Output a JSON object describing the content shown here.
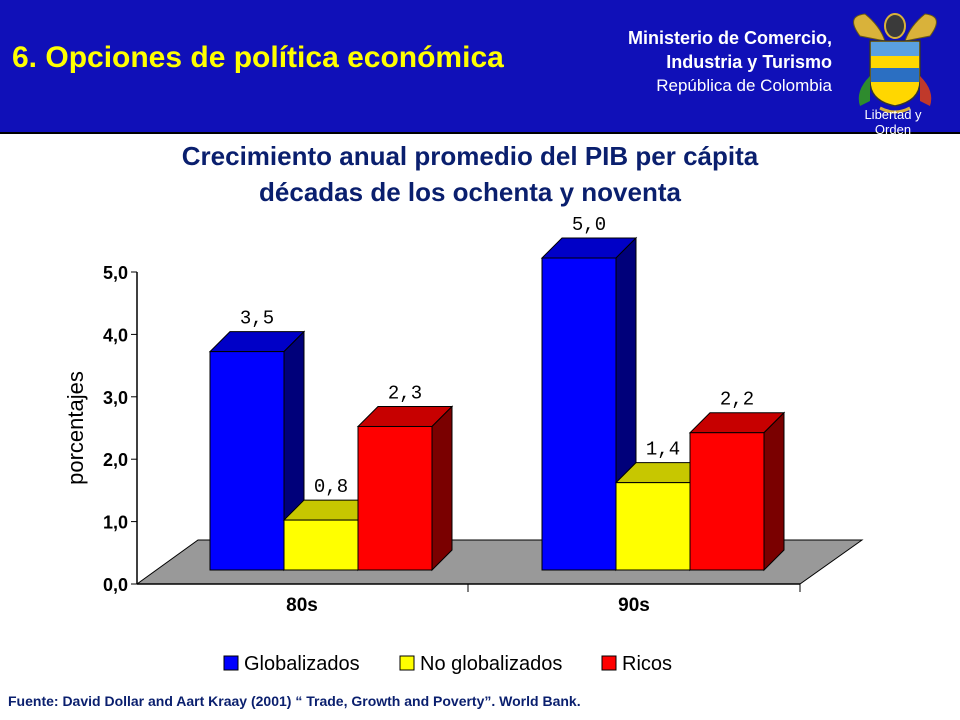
{
  "header": {
    "title": "6. Opciones de política económica",
    "ministry_line1": "Ministerio de Comercio,",
    "ministry_line2": "Industria y Turismo",
    "ministry_line3": "República de Colombia",
    "motto": "Libertad y Orden"
  },
  "chart_data": {
    "type": "bar",
    "title_line1": "Crecimiento anual promedio del PIB per cápita",
    "title_line2": "décadas de los ochenta y noventa",
    "ylabel": "porcentajes",
    "ylim": [
      0,
      5
    ],
    "yticks": [
      "0,0",
      "1,0",
      "2,0",
      "3,0",
      "4,0",
      "5,0"
    ],
    "categories": [
      "80s",
      "90s"
    ],
    "series": [
      {
        "name": "Globalizados",
        "values": [
          3.5,
          5.0
        ],
        "labels": [
          "3,5",
          "5,0"
        ],
        "color": "#0000ff"
      },
      {
        "name": "No globalizados",
        "values": [
          0.8,
          1.4
        ],
        "labels": [
          "0,8",
          "1,4"
        ],
        "color": "#ffff00"
      },
      {
        "name": "Ricos",
        "values": [
          2.3,
          2.2
        ],
        "labels": [
          "2,3",
          "2,2"
        ],
        "color": "#ff0000"
      }
    ],
    "legend_position": "bottom",
    "floor_color": "#999999"
  },
  "source": "Fuente: David Dollar and Aart Kraay (2001) “ Trade, Growth and Poverty”. World Bank."
}
